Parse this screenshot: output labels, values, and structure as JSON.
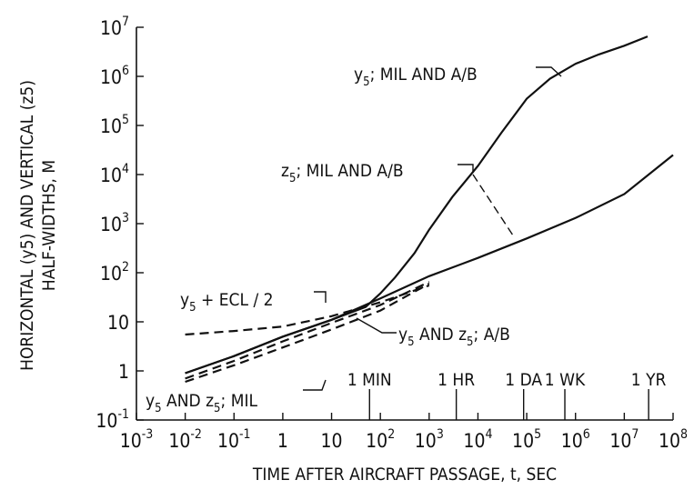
{
  "chart_data": {
    "type": "line",
    "title": "",
    "xlabel": "TIME AFTER AIRCRAFT PASSAGE, t, SEC",
    "ylabel_line1": "HORIZONTAL (y5) AND VERTICAL (z5)",
    "ylabel_line2": "HALF-WIDTHS, M",
    "xscale": "log",
    "yscale": "log",
    "xlim": [
      0.001,
      100000000
    ],
    "ylim": [
      0.1,
      10000000
    ],
    "grid": false,
    "x_ticks": [
      {
        "base": "10",
        "exp": "-3"
      },
      {
        "base": "10",
        "exp": "-2"
      },
      {
        "base": "10",
        "exp": "-1"
      },
      {
        "base": "1",
        "exp": ""
      },
      {
        "base": "10",
        "exp": ""
      },
      {
        "base": "10",
        "exp": "2"
      },
      {
        "base": "10",
        "exp": "3"
      },
      {
        "base": "10",
        "exp": "4"
      },
      {
        "base": "10",
        "exp": "5"
      },
      {
        "base": "10",
        "exp": "6"
      },
      {
        "base": "10",
        "exp": "7"
      },
      {
        "base": "10",
        "exp": "8"
      }
    ],
    "y_ticks": [
      {
        "base": "10",
        "exp": "-1"
      },
      {
        "base": "1",
        "exp": ""
      },
      {
        "base": "10",
        "exp": ""
      },
      {
        "base": "10",
        "exp": "2"
      },
      {
        "base": "10",
        "exp": "3"
      },
      {
        "base": "10",
        "exp": "4"
      },
      {
        "base": "10",
        "exp": "5"
      },
      {
        "base": "10",
        "exp": "6"
      },
      {
        "base": "10",
        "exp": "7"
      }
    ],
    "time_markers": [
      {
        "label": "1 MIN",
        "x": 60
      },
      {
        "label": "1 HR",
        "x": 3600
      },
      {
        "label": "1 DA",
        "x": 86400
      },
      {
        "label": "1 WK",
        "x": 604800
      },
      {
        "label": "1 YR",
        "x": 31536000
      }
    ],
    "series": [
      {
        "name": "y5; MIL AND A/B",
        "style": "solid",
        "x": [
          0.01,
          0.1,
          1,
          10,
          50,
          100,
          200,
          500,
          1000,
          3000,
          10000,
          30000,
          100000,
          300000,
          1000000,
          3000000,
          10000000,
          30000000
        ],
        "y": [
          0.9,
          2.0,
          5.0,
          11,
          20,
          38,
          80,
          250,
          750,
          3500,
          15000,
          70000,
          350000,
          900000,
          1800000,
          2800000,
          4200000,
          6500000
        ]
      },
      {
        "name": "z5; MIL AND A/B",
        "style": "solid",
        "x": [
          0.01,
          0.1,
          1,
          10,
          100,
          1000,
          10000,
          100000,
          1000000,
          10000000,
          100000000
        ],
        "y": [
          0.9,
          2.0,
          5.0,
          11,
          30,
          85,
          200,
          500,
          1300,
          4000,
          25000
        ]
      },
      {
        "name": "y5 + ECL/2",
        "style": "dashed",
        "x": [
          0.01,
          0.1,
          1,
          10,
          100,
          1000
        ],
        "y": [
          5.5,
          6.5,
          8.0,
          13,
          25,
          55
        ]
      },
      {
        "name": "y5 AND z5; A/B",
        "style": "dashed",
        "x": [
          0.01,
          0.1,
          1,
          10,
          100,
          1000
        ],
        "y": [
          0.7,
          1.6,
          4.0,
          9.5,
          22,
          65
        ]
      },
      {
        "name": "y5 AND z5; MIL",
        "style": "dashed",
        "x": [
          0.01,
          0.1,
          1,
          10,
          100,
          1000
        ],
        "y": [
          0.6,
          1.3,
          3.0,
          7.0,
          17,
          60
        ]
      }
    ],
    "annotations": [
      {
        "base": "y",
        "sub": "5",
        "rest": "; MIL AND A/B"
      },
      {
        "base": "z",
        "sub": "5",
        "rest": "; MIL AND A/B"
      },
      {
        "base": "y",
        "sub": "5",
        "rest": " + ECL / 2"
      },
      {
        "base": "y",
        "sub": "5",
        "mid": " AND z",
        "sub2": "5",
        "rest": "; A/B"
      },
      {
        "base": "y",
        "sub": "5",
        "mid": " AND z",
        "sub2": "5",
        "rest": "; MIL"
      }
    ]
  }
}
